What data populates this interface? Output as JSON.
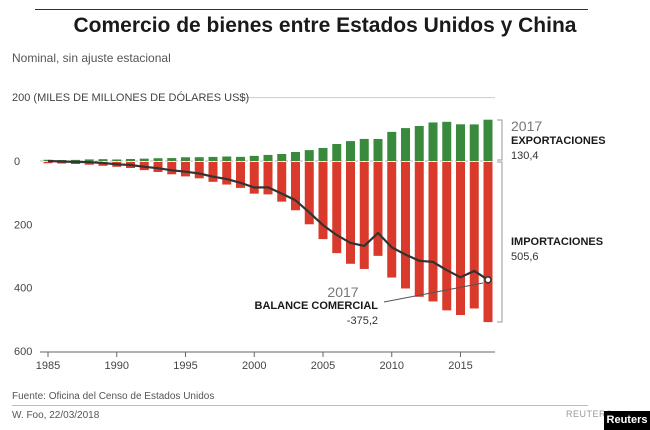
{
  "header": {
    "title": "Comercio de bienes entre Estados Unidos y China",
    "subtitle": "Nominal, sin ajuste estacional"
  },
  "footer": {
    "source": "Fuente: Oficina del Censo de Estados Unidos",
    "byline": "W. Foo, 22/03/2018",
    "watermark": "REUTERS",
    "logo": "Reuters"
  },
  "annotations": {
    "exports": {
      "year": "2017",
      "label": "EXPORTACIONES",
      "value": "130,4"
    },
    "imports": {
      "label": "IMPORTACIONES",
      "value": "505,6"
    },
    "balance": {
      "year": "2017",
      "label": "BALANCE COMERCIAL",
      "value": "-375,2"
    }
  },
  "colors": {
    "exports": "#3a8a3e",
    "imports": "#d93a2b",
    "balance": "#333333"
  },
  "chart_data": {
    "type": "bar",
    "ylabel": "200 (MILES DE MILLONES DE DÓLARES US$)",
    "ylim": [
      -600,
      200
    ],
    "y_ticks": [
      0,
      -200,
      -400,
      -600
    ],
    "y_tick_labels": [
      "0",
      "200",
      "400",
      "600"
    ],
    "x_ticks": [
      1985,
      1990,
      1995,
      2000,
      2005,
      2010,
      2015
    ],
    "x_tick_labels": [
      "1985",
      "1990",
      "1995",
      "2000",
      "2005",
      "2010",
      "2015"
    ],
    "categories": [
      1985,
      1986,
      1987,
      1988,
      1989,
      1990,
      1991,
      1992,
      1993,
      1994,
      1995,
      1996,
      1997,
      1998,
      1999,
      2000,
      2001,
      2002,
      2003,
      2004,
      2005,
      2006,
      2007,
      2008,
      2009,
      2010,
      2011,
      2012,
      2013,
      2014,
      2015,
      2016,
      2017
    ],
    "series": [
      {
        "name": "EXPORTACIONES",
        "type": "bar",
        "values": [
          3.9,
          3.1,
          3.5,
          5.0,
          5.8,
          4.8,
          6.3,
          7.4,
          8.8,
          9.3,
          11.8,
          12.0,
          12.9,
          14.2,
          13.1,
          16.2,
          19.2,
          22.1,
          28.4,
          34.4,
          41.2,
          53.7,
          62.9,
          69.7,
          69.5,
          91.9,
          103.9,
          110.5,
          121.7,
          123.7,
          115.9,
          115.6,
          130.4
        ]
      },
      {
        "name": "IMPORTACIONES",
        "type": "bar",
        "values": [
          -3.9,
          -4.8,
          -6.3,
          -8.5,
          -12.0,
          -15.2,
          -19.0,
          -25.7,
          -31.5,
          -38.8,
          -45.5,
          -51.5,
          -62.6,
          -71.2,
          -81.8,
          -100.0,
          -102.3,
          -125.2,
          -152.4,
          -196.7,
          -243.5,
          -287.8,
          -321.4,
          -337.8,
          -296.4,
          -364.9,
          -399.4,
          -425.6,
          -440.4,
          -468.5,
          -483.2,
          -462.6,
          -505.6
        ]
      },
      {
        "name": "BALANCE COMERCIAL",
        "type": "line",
        "values": [
          0.0,
          -1.7,
          -2.8,
          -3.5,
          -6.2,
          -10.4,
          -12.7,
          -18.3,
          -22.8,
          -29.5,
          -33.8,
          -39.5,
          -49.7,
          -57.0,
          -68.7,
          -83.8,
          -83.1,
          -103.1,
          -124.1,
          -162.3,
          -202.3,
          -234.1,
          -258.5,
          -268.0,
          -226.9,
          -273.0,
          -295.5,
          -315.1,
          -318.7,
          -344.8,
          -367.3,
          -347.0,
          -375.2
        ]
      }
    ]
  }
}
